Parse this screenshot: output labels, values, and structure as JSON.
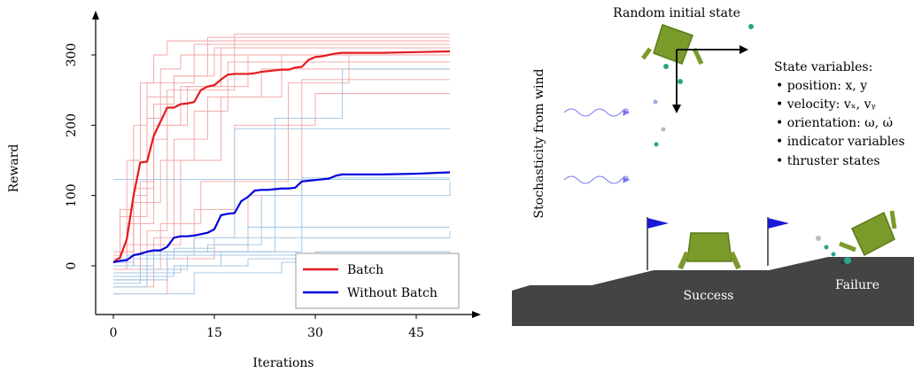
{
  "chart_data": {
    "type": "line",
    "xlabel": "Iterations",
    "ylabel": "Reward",
    "xlim": [
      -3,
      52
    ],
    "ylim": [
      -75,
      355
    ],
    "xticks": [
      0,
      15,
      30,
      45
    ],
    "yticks": [
      0,
      100,
      200,
      300
    ],
    "legend": {
      "placement": "bottom-right",
      "entries": [
        "Batch",
        "Without Batch"
      ]
    },
    "colors": {
      "batch": "#e41a1c",
      "without_batch": "#0000dd",
      "batch_light": "#f3a3a3",
      "without_light": "#9cc4e4"
    },
    "series": [
      {
        "name": "Batch",
        "x": [
          0,
          1,
          2,
          3,
          4,
          5,
          6,
          7,
          8,
          9,
          10,
          11,
          12,
          13,
          14,
          15,
          16,
          17,
          18,
          19,
          20,
          21,
          22,
          23,
          24,
          25,
          26,
          27,
          28,
          29,
          30,
          31,
          32,
          33,
          34,
          35,
          40,
          45,
          50
        ],
        "y": [
          5,
          12,
          38,
          100,
          147,
          148,
          185,
          205,
          225,
          225,
          230,
          231,
          233,
          250,
          255,
          257,
          265,
          272,
          273,
          273,
          273,
          274,
          276,
          277,
          278,
          279,
          279,
          282,
          283,
          293,
          297,
          298,
          300,
          302,
          303,
          303,
          303,
          304,
          305
        ]
      },
      {
        "name": "Without Batch",
        "x": [
          0,
          1,
          2,
          3,
          4,
          5,
          6,
          7,
          8,
          9,
          10,
          11,
          12,
          13,
          14,
          15,
          16,
          17,
          18,
          19,
          20,
          21,
          22,
          23,
          24,
          25,
          26,
          27,
          28,
          29,
          30,
          31,
          32,
          33,
          34,
          35,
          40,
          45,
          50
        ],
        "y": [
          5,
          7,
          8,
          15,
          17,
          20,
          22,
          22,
          27,
          40,
          42,
          42,
          43,
          45,
          47,
          52,
          72,
          74,
          75,
          92,
          98,
          107,
          108,
          108,
          109,
          110,
          110,
          111,
          120,
          121,
          122,
          123,
          124,
          128,
          130,
          130,
          130,
          131,
          133
        ]
      }
    ],
    "runs_batch": [
      {
        "x": [
          0,
          2,
          4,
          6,
          8,
          50
        ],
        "y": [
          -5,
          150,
          260,
          300,
          320,
          320
        ]
      },
      {
        "x": [
          0,
          3,
          5,
          7,
          10,
          50
        ],
        "y": [
          0,
          100,
          210,
          280,
          300,
          300
        ]
      },
      {
        "x": [
          0,
          1,
          3,
          5,
          12,
          50
        ],
        "y": [
          5,
          80,
          200,
          260,
          315,
          315
        ]
      },
      {
        "x": [
          0,
          4,
          6,
          9,
          15,
          50
        ],
        "y": [
          -10,
          120,
          230,
          270,
          310,
          310
        ]
      },
      {
        "x": [
          0,
          2,
          6,
          8,
          18,
          50
        ],
        "y": [
          10,
          60,
          180,
          250,
          330,
          330
        ]
      },
      {
        "x": [
          0,
          5,
          8,
          11,
          20,
          50
        ],
        "y": [
          -20,
          50,
          200,
          255,
          300,
          300
        ]
      },
      {
        "x": [
          0,
          3,
          7,
          12,
          17,
          50
        ],
        "y": [
          0,
          90,
          150,
          220,
          290,
          290
        ]
      },
      {
        "x": [
          0,
          1,
          5,
          9,
          14,
          50
        ],
        "y": [
          15,
          70,
          240,
          270,
          325,
          325
        ]
      },
      {
        "x": [
          0,
          6,
          9,
          14,
          22,
          50
        ],
        "y": [
          -30,
          40,
          180,
          240,
          280,
          280
        ]
      },
      {
        "x": [
          0,
          2,
          10,
          16,
          25,
          50
        ],
        "y": [
          5,
          30,
          150,
          240,
          300,
          300
        ]
      },
      {
        "x": [
          0,
          4,
          12,
          18,
          30,
          50
        ],
        "y": [
          -15,
          20,
          80,
          200,
          245,
          245
        ]
      },
      {
        "x": [
          0,
          8,
          15,
          20,
          28,
          50
        ],
        "y": [
          -40,
          10,
          30,
          100,
          265,
          265
        ]
      },
      {
        "x": [
          0,
          3,
          6,
          10,
          16,
          50
        ],
        "y": [
          20,
          110,
          200,
          255,
          310,
          310
        ]
      },
      {
        "x": [
          0,
          7,
          13,
          26,
          35,
          50
        ],
        "y": [
          -5,
          60,
          120,
          260,
          300,
          300
        ]
      }
    ],
    "runs_without": [
      {
        "x": [
          0,
          10,
          16,
          24,
          34,
          50
        ],
        "y": [
          -10,
          0,
          20,
          210,
          280,
          280
        ]
      },
      {
        "x": [
          0,
          5,
          12,
          18,
          50
        ],
        "y": [
          -30,
          15,
          40,
          195,
          195
        ]
      },
      {
        "x": [
          0,
          8,
          14,
          22,
          50
        ],
        "y": [
          -20,
          20,
          30,
          100,
          120
        ]
      },
      {
        "x": [
          0,
          6,
          12,
          20,
          30,
          50
        ],
        "y": [
          0,
          20,
          20,
          55,
          55,
          55
        ]
      },
      {
        "x": [
          0,
          3,
          9,
          15,
          50
        ],
        "y": [
          5,
          10,
          25,
          40,
          50
        ]
      },
      {
        "x": [
          0,
          4,
          11,
          18,
          50
        ],
        "y": [
          -25,
          -5,
          15,
          15,
          15
        ]
      },
      {
        "x": [
          0,
          2,
          7,
          28,
          50
        ],
        "y": [
          10,
          15,
          20,
          125,
          125
        ]
      },
      {
        "x": [
          0,
          9,
          20,
          30,
          50
        ],
        "y": [
          -15,
          0,
          10,
          20,
          20
        ]
      },
      {
        "x": [
          0,
          1,
          50
        ],
        "y": [
          123,
          123,
          123
        ]
      },
      {
        "x": [
          0,
          12,
          25,
          50
        ],
        "y": [
          -40,
          -10,
          5,
          5
        ]
      }
    ]
  },
  "scene": {
    "top_label": "Random initial state",
    "side_label": "Stochasticity from wind",
    "state_title": "State variables:",
    "state_items": [
      "• position: x, y",
      "• velocity: vₓ, vᵧ",
      "• orientation: ω, ω̇",
      "• indicator variables",
      "• thruster states"
    ],
    "success_label": "Success",
    "failure_label": "Failure",
    "colors": {
      "lander": "#7a9a2a",
      "ground": "#444444",
      "flag": "#1a1ad6",
      "particle": "#2aa58a",
      "wind": "#7777ee"
    }
  }
}
